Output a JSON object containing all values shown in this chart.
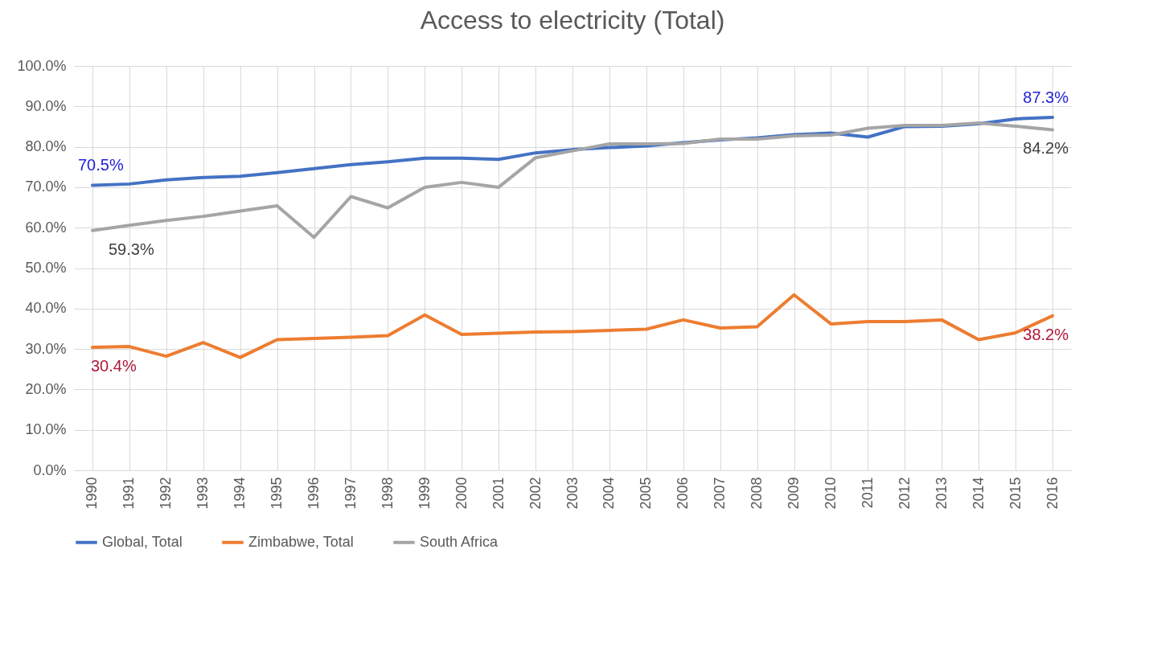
{
  "chart_data": {
    "type": "line",
    "title": "Access to electricity (Total)",
    "categories": [
      "1990",
      "1991",
      "1992",
      "1993",
      "1994",
      "1995",
      "1996",
      "1997",
      "1998",
      "1999",
      "2000",
      "2001",
      "2002",
      "2003",
      "2004",
      "2005",
      "2006",
      "2007",
      "2008",
      "2009",
      "2010",
      "2011",
      "2012",
      "2013",
      "2014",
      "2015",
      "2016"
    ],
    "series": [
      {
        "name": "Global, Total",
        "color": "#4472c4",
        "values": [
          70.5,
          70.8,
          71.8,
          72.4,
          72.7,
          73.6,
          74.6,
          75.6,
          76.3,
          77.2,
          77.2,
          76.9,
          78.5,
          79.3,
          79.8,
          80.2,
          81.0,
          81.7,
          82.2,
          83.0,
          83.4,
          82.4,
          85.0,
          85.1,
          85.7,
          86.9,
          87.3
        ],
        "value_labels": [
          "70.5%",
          null,
          null,
          null,
          null,
          null,
          null,
          null,
          null,
          null,
          null,
          null,
          null,
          null,
          null,
          null,
          null,
          null,
          null,
          null,
          null,
          null,
          null,
          null,
          null,
          null,
          "87.3%"
        ]
      },
      {
        "name": "Zimbabwe, Total",
        "color": "#ed7d31",
        "values": [
          30.4,
          30.6,
          28.2,
          31.6,
          27.9,
          32.3,
          32.6,
          32.9,
          33.3,
          38.4,
          33.6,
          33.9,
          34.2,
          34.3,
          34.6,
          34.9,
          37.2,
          35.2,
          35.5,
          43.4,
          36.2,
          36.8,
          36.8,
          37.2,
          32.3,
          34.0,
          38.2
        ],
        "value_labels": [
          "30.4%",
          null,
          null,
          null,
          null,
          null,
          null,
          null,
          null,
          null,
          null,
          null,
          null,
          null,
          null,
          null,
          null,
          null,
          null,
          null,
          null,
          null,
          null,
          null,
          null,
          null,
          "38.2%"
        ]
      },
      {
        "name": "South Africa",
        "color": "#a5a5a5",
        "values": [
          59.3,
          60.6,
          61.8,
          62.8,
          64.1,
          65.4,
          57.6,
          67.7,
          64.9,
          70.0,
          71.2,
          70.0,
          77.3,
          79.0,
          80.7,
          80.7,
          80.8,
          81.9,
          81.9,
          82.7,
          82.9,
          84.6,
          85.3,
          85.3,
          85.9,
          85.1,
          84.2
        ],
        "value_labels": [
          "59.3%",
          null,
          null,
          null,
          null,
          null,
          null,
          null,
          null,
          null,
          null,
          null,
          null,
          null,
          null,
          null,
          null,
          null,
          null,
          null,
          null,
          null,
          null,
          null,
          null,
          null,
          "84.2%"
        ]
      }
    ],
    "ylim": [
      0,
      100
    ],
    "yticks": [
      {
        "value": 0,
        "label": "0.0%"
      },
      {
        "value": 10,
        "label": "10.0%"
      },
      {
        "value": 20,
        "label": "20.0%"
      },
      {
        "value": 30,
        "label": "30.0%"
      },
      {
        "value": 40,
        "label": "40.0%"
      },
      {
        "value": 50,
        "label": "50.0%"
      },
      {
        "value": 60,
        "label": "60.0%"
      },
      {
        "value": 70,
        "label": "70.0%"
      },
      {
        "value": 80,
        "label": "80.0%"
      },
      {
        "value": 90,
        "label": "90.0%"
      },
      {
        "value": 100,
        "label": "100.0%"
      }
    ],
    "grid": true,
    "legend": "bottom"
  }
}
